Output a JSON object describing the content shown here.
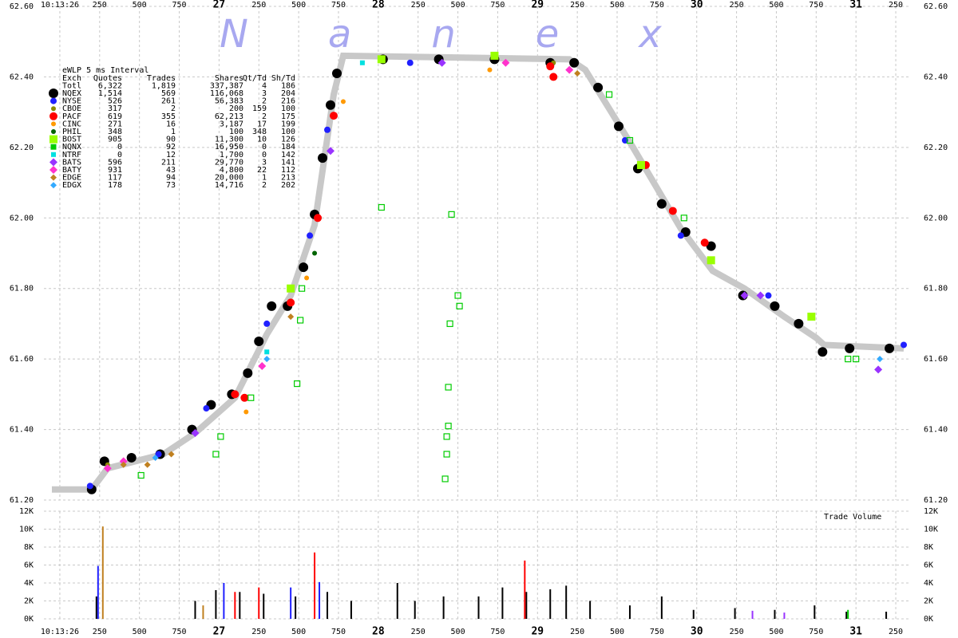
{
  "chart_data": [
    {
      "type": "scatter",
      "title": "eWLP 5 ms Interval",
      "watermark": "Nanex",
      "columns": [
        "Exch",
        "Quotes",
        "Trades",
        "Shares",
        "Qt/Td",
        "Sh/Td"
      ],
      "total": {
        "name": "Totl",
        "stats": [
          "6,322",
          "1,819",
          "337,387",
          "4",
          "186"
        ]
      },
      "xlim": [
        25.9,
        31.34
      ],
      "xticks": [
        {
          "value": 26,
          "label": "10:13:26"
        },
        {
          "value": 26.25,
          "label": "250"
        },
        {
          "value": 26.5,
          "label": "500"
        },
        {
          "value": 26.75,
          "label": "750"
        },
        27,
        {
          "value": 27.25,
          "label": "250"
        },
        {
          "value": 27.5,
          "label": "500"
        },
        {
          "value": 27.75,
          "label": "750"
        },
        28,
        {
          "value": 28.25,
          "label": "250"
        },
        {
          "value": 28.5,
          "label": "500"
        },
        {
          "value": 28.75,
          "label": "750"
        },
        29,
        {
          "value": 29.25,
          "label": "250"
        },
        {
          "value": 29.5,
          "label": "500"
        },
        {
          "value": 29.75,
          "label": "750"
        },
        30,
        {
          "value": 30.25,
          "label": "250"
        },
        {
          "value": 30.5,
          "label": "500"
        },
        {
          "value": 30.75,
          "label": "750"
        },
        31,
        {
          "value": 31.25,
          "label": "250"
        }
      ],
      "ylim": [
        61.2,
        62.6
      ],
      "yticks": [
        {
          "value": 61.2,
          "label": "61.20"
        },
        {
          "value": 61.4,
          "label": "61.40"
        },
        {
          "value": 61.6,
          "label": "61.60"
        },
        {
          "value": 61.8,
          "label": "61.80"
        },
        {
          "value": 62.0,
          "label": "62.00"
        },
        {
          "value": 62.2,
          "label": "62.20"
        },
        {
          "value": 62.4,
          "label": "62.40"
        },
        {
          "value": 62.6,
          "label": "62.60"
        }
      ],
      "grid": true,
      "band": {
        "color": "#c8c8c8",
        "x": [
          25.95,
          26.2,
          26.3,
          26.65,
          26.85,
          27.1,
          27.3,
          27.45,
          27.6,
          27.72,
          27.78,
          29.2,
          29.3,
          29.6,
          29.9,
          30.1,
          30.3,
          30.55,
          30.75,
          30.8,
          31.3
        ],
        "values": [
          61.23,
          61.23,
          61.29,
          61.33,
          61.39,
          61.49,
          61.67,
          61.78,
          61.98,
          62.35,
          62.46,
          62.45,
          62.42,
          62.2,
          61.97,
          61.85,
          61.8,
          61.72,
          61.66,
          61.64,
          61.63
        ]
      },
      "series": [
        {
          "name": "NQEX",
          "color": "#000000",
          "marker": "circle",
          "size": 6,
          "stats": [
            "1,514",
            "569",
            "116,068",
            "3",
            "204"
          ],
          "x": [
            26.2,
            26.28,
            26.45,
            26.63,
            26.83,
            26.95,
            27.08,
            27.18,
            27.25,
            27.33,
            27.43,
            27.53,
            27.6,
            27.65,
            27.7,
            27.74,
            28.03,
            28.38,
            28.73,
            29.08,
            29.23,
            29.38,
            29.51,
            29.63,
            29.78,
            29.93,
            30.09,
            30.29,
            30.49,
            30.64,
            30.79,
            30.96,
            31.21
          ],
          "values": [
            61.23,
            61.31,
            61.32,
            61.33,
            61.4,
            61.47,
            61.5,
            61.56,
            61.65,
            61.75,
            61.75,
            61.86,
            62.01,
            62.17,
            62.32,
            62.41,
            62.45,
            62.45,
            62.45,
            62.44,
            62.44,
            62.37,
            62.26,
            62.14,
            62.04,
            61.96,
            61.92,
            61.78,
            61.75,
            61.7,
            61.62,
            61.63,
            61.63
          ]
        },
        {
          "name": "NYSE",
          "color": "#2020ff",
          "marker": "circle",
          "size": 4,
          "stats": [
            "526",
            "261",
            "56,383",
            "2",
            "216"
          ],
          "x": [
            26.19,
            26.62,
            26.92,
            27.3,
            27.57,
            27.68,
            28.2,
            29.55,
            29.9,
            30.45,
            31.3
          ],
          "values": [
            61.24,
            61.33,
            61.46,
            61.7,
            61.95,
            62.25,
            62.44,
            62.22,
            61.95,
            61.78,
            61.64
          ]
        },
        {
          "name": "CBOE",
          "color": "#8a8a00",
          "marker": "circle",
          "size": 3,
          "stats": [
            "317",
            "2",
            "200",
            "159",
            "100"
          ],
          "x": [
            26.3,
            29.1
          ],
          "values": [
            61.3,
            62.44
          ]
        },
        {
          "name": "PACF",
          "color": "#ff0000",
          "marker": "circle",
          "size": 5,
          "stats": [
            "619",
            "355",
            "62,213",
            "2",
            "175"
          ],
          "x": [
            27.1,
            27.16,
            27.45,
            27.62,
            27.72,
            29.08,
            29.1,
            29.68,
            29.85,
            30.05
          ],
          "values": [
            61.5,
            61.49,
            61.76,
            62.0,
            62.29,
            62.43,
            62.4,
            62.15,
            62.02,
            61.93
          ]
        },
        {
          "name": "CINC",
          "color": "#ff9900",
          "marker": "circle",
          "size": 3,
          "stats": [
            "271",
            "16",
            "3,187",
            "17",
            "199"
          ],
          "x": [
            27.55,
            27.78,
            27.17,
            28.7
          ],
          "values": [
            61.83,
            62.33,
            61.45,
            62.42
          ]
        },
        {
          "name": "PHIL",
          "color": "#006400",
          "marker": "circle",
          "size": 3,
          "stats": [
            "348",
            "1",
            "100",
            "348",
            "100"
          ],
          "x": [
            27.6
          ],
          "values": [
            61.9
          ]
        },
        {
          "name": "BOST",
          "color": "#99ff00",
          "marker": "square",
          "size": 5,
          "stats": [
            "905",
            "90",
            "11,300",
            "10",
            "126"
          ],
          "x": [
            27.45,
            28.02,
            28.73,
            29.65,
            30.09,
            30.72
          ],
          "values": [
            61.8,
            62.45,
            62.46,
            62.15,
            61.88,
            61.72
          ]
        },
        {
          "name": "NQNX",
          "color": "#00cc00",
          "marker": "square",
          "size": 3.5,
          "hollow": true,
          "stats": [
            "0",
            "92",
            "16,950",
            "0",
            "184"
          ],
          "x": [
            28.02,
            28.46,
            28.45,
            28.44,
            28.44,
            28.43,
            28.43,
            28.42,
            28.5,
            28.51,
            27.51,
            27.49,
            26.51,
            26.98,
            27.01,
            27.2,
            27.52,
            30.95,
            29.45,
            29.58,
            29.92,
            31.0
          ],
          "values": [
            62.03,
            62.01,
            61.7,
            61.52,
            61.41,
            61.38,
            61.33,
            61.26,
            61.78,
            61.75,
            61.71,
            61.53,
            61.27,
            61.33,
            61.38,
            61.49,
            61.8,
            61.6,
            62.35,
            62.22,
            62.0,
            61.6
          ]
        },
        {
          "name": "NTRF",
          "color": "#00e0e0",
          "marker": "square",
          "size": 3,
          "stats": [
            "0",
            "12",
            "1,700",
            "0",
            "142"
          ],
          "x": [
            27.3,
            27.9
          ],
          "values": [
            61.62,
            62.44
          ]
        },
        {
          "name": "BATS",
          "color": "#9933ff",
          "marker": "diamond",
          "size": 5,
          "stats": [
            "596",
            "211",
            "29,770",
            "3",
            "141"
          ],
          "x": [
            26.85,
            27.7,
            28.4,
            30.3,
            30.4,
            31.14
          ],
          "values": [
            61.39,
            62.19,
            62.44,
            61.78,
            61.78,
            61.57
          ]
        },
        {
          "name": "BATY",
          "color": "#ff33cc",
          "marker": "diamond",
          "size": 5,
          "stats": [
            "931",
            "43",
            "4,800",
            "22",
            "112"
          ],
          "x": [
            26.3,
            26.4,
            27.27,
            28.8,
            29.2
          ],
          "values": [
            61.29,
            61.31,
            61.58,
            62.44,
            62.42
          ]
        },
        {
          "name": "EDGE",
          "color": "#c08020",
          "marker": "diamond",
          "size": 4,
          "stats": [
            "117",
            "94",
            "20,000",
            "1",
            "213"
          ],
          "x": [
            26.4,
            26.55,
            26.7,
            27.45,
            29.25
          ],
          "values": [
            61.3,
            61.3,
            61.33,
            61.72,
            62.41
          ]
        },
        {
          "name": "EDGX",
          "color": "#33aaff",
          "marker": "diamond",
          "size": 4,
          "stats": [
            "178",
            "73",
            "14,716",
            "2",
            "202"
          ],
          "x": [
            26.6,
            27.3,
            31.15
          ],
          "values": [
            61.32,
            61.6,
            61.6
          ]
        }
      ]
    },
    {
      "type": "bar",
      "title": "Trade Volume",
      "xlim": [
        25.9,
        31.34
      ],
      "xticks": [
        {
          "value": 26,
          "label": "10:13:26"
        },
        {
          "value": 26.25,
          "label": "250"
        },
        {
          "value": 26.5,
          "label": "500"
        },
        {
          "value": 26.75,
          "label": "750"
        },
        27,
        {
          "value": 27.25,
          "label": "250"
        },
        {
          "value": 27.5,
          "label": "500"
        },
        {
          "value": 27.75,
          "label": "750"
        },
        28,
        {
          "value": 28.25,
          "label": "250"
        },
        {
          "value": 28.5,
          "label": "500"
        },
        {
          "value": 28.75,
          "label": "750"
        },
        29,
        {
          "value": 29.25,
          "label": "250"
        },
        {
          "value": 29.5,
          "label": "500"
        },
        {
          "value": 29.75,
          "label": "750"
        },
        30,
        {
          "value": 30.25,
          "label": "250"
        },
        {
          "value": 30.5,
          "label": "500"
        },
        {
          "value": 30.75,
          "label": "750"
        },
        31,
        {
          "value": 31.25,
          "label": "250"
        }
      ],
      "ylim": [
        0,
        12000
      ],
      "yticks": [
        {
          "value": 0,
          "label": "0K"
        },
        {
          "value": 2000,
          "label": "2K"
        },
        {
          "value": 4000,
          "label": "4K"
        },
        {
          "value": 6000,
          "label": "6K"
        },
        {
          "value": 8000,
          "label": "8K"
        },
        {
          "value": 10000,
          "label": "10K"
        },
        {
          "value": 12000,
          "label": "12K"
        }
      ],
      "grid": true,
      "series": [
        {
          "color": "#000000",
          "x": [
            26.23,
            26.85,
            26.98,
            27.13,
            27.28,
            27.48,
            27.68,
            27.83,
            28.12,
            28.23,
            28.41,
            28.63,
            28.78,
            28.93,
            29.08,
            29.18,
            29.33,
            29.58,
            29.78,
            29.98,
            30.24,
            30.49,
            30.74,
            30.94,
            31.19
          ],
          "values": [
            2500,
            2000,
            3200,
            3000,
            2800,
            2500,
            3000,
            2000,
            4000,
            2000,
            2500,
            2500,
            3500,
            3000,
            3300,
            3700,
            2000,
            1500,
            2500,
            1000,
            1200,
            1000,
            1500,
            800,
            800
          ]
        },
        {
          "color": "#c08020",
          "x": [
            26.27,
            26.9
          ],
          "values": [
            10300,
            1500
          ]
        },
        {
          "color": "#2020ff",
          "x": [
            26.24,
            27.03,
            27.45,
            27.63
          ],
          "values": [
            5900,
            4000,
            3500,
            4100
          ]
        },
        {
          "color": "#ff0000",
          "x": [
            27.1,
            27.25,
            27.6,
            28.92
          ],
          "values": [
            3000,
            3500,
            7400,
            6500
          ]
        },
        {
          "color": "#00cc00",
          "x": [
            30.95
          ],
          "values": [
            1000
          ]
        },
        {
          "color": "#9933ff",
          "x": [
            30.35,
            30.55
          ],
          "values": [
            900,
            700
          ]
        }
      ]
    }
  ]
}
